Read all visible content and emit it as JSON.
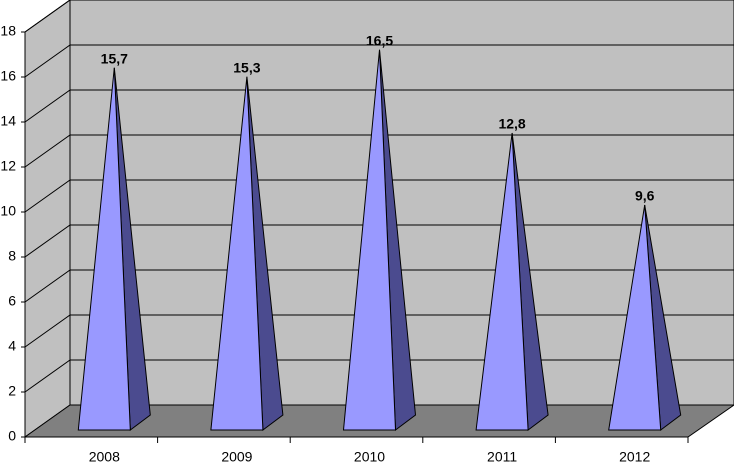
{
  "chart_data": {
    "type": "pyramid3d",
    "categories": [
      "2008",
      "2009",
      "2010",
      "2011",
      "2012"
    ],
    "values": [
      15.7,
      15.3,
      16.5,
      12.8,
      9.6
    ],
    "value_labels": [
      "15,7",
      "15,3",
      "16,5",
      "12,8",
      "9,6"
    ],
    "color": "#9999ff",
    "side_color": "#4b4b8f",
    "ylim": [
      0,
      18
    ],
    "yticks": [
      0,
      2,
      4,
      6,
      8,
      10,
      12,
      14,
      16,
      18
    ],
    "grid": true
  }
}
